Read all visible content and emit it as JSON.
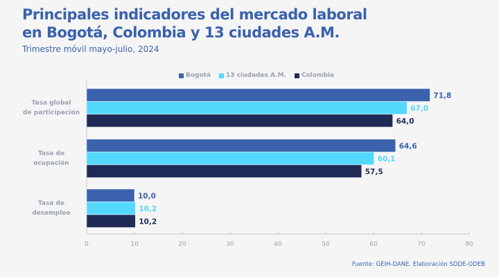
{
  "header": {
    "title_line1": "Principales indicadores del mercado laboral",
    "title_line2": "en Bogotá, Colombia y 13 ciudades A.M.",
    "subtitle": "Trimestre móvil mayo-julio, 2024"
  },
  "footer": {
    "source": "Fuente: GEIH-DANE. Elaboración SDDE-ODEB"
  },
  "chart_data": {
    "type": "bar",
    "orientation": "horizontal",
    "title": "Principales indicadores del mercado laboral en Bogotá, Colombia y 13 ciudades A.M.",
    "subtitle": "Trimestre móvil mayo-julio, 2024",
    "categories": [
      [
        "Tasa global",
        "de participación"
      ],
      [
        "Tasa de",
        "ocupación"
      ],
      [
        "Tasa de",
        "desempleo"
      ]
    ],
    "series": [
      {
        "name": "Bogotá",
        "color": "#3a62ad",
        "values": [
          71.8,
          64.6,
          10.0
        ],
        "labels": [
          "71,8",
          "64,6",
          "10,0"
        ]
      },
      {
        "name": "13 ciudades A.M.",
        "color": "#55d8fe",
        "values": [
          67.0,
          60.1,
          10.2
        ],
        "labels": [
          "67,0",
          "60,1",
          "10,2"
        ]
      },
      {
        "name": "Colombia",
        "color": "#1f2a56",
        "values": [
          64.0,
          57.5,
          10.2
        ],
        "labels": [
          "64,0",
          "57,5",
          "10,2"
        ]
      }
    ],
    "xlim": [
      0,
      80
    ],
    "xticks": [
      0,
      10,
      20,
      30,
      40,
      50,
      60,
      70,
      80
    ],
    "xlabel": "",
    "ylabel": "",
    "legend_position": "top",
    "grid": false
  }
}
